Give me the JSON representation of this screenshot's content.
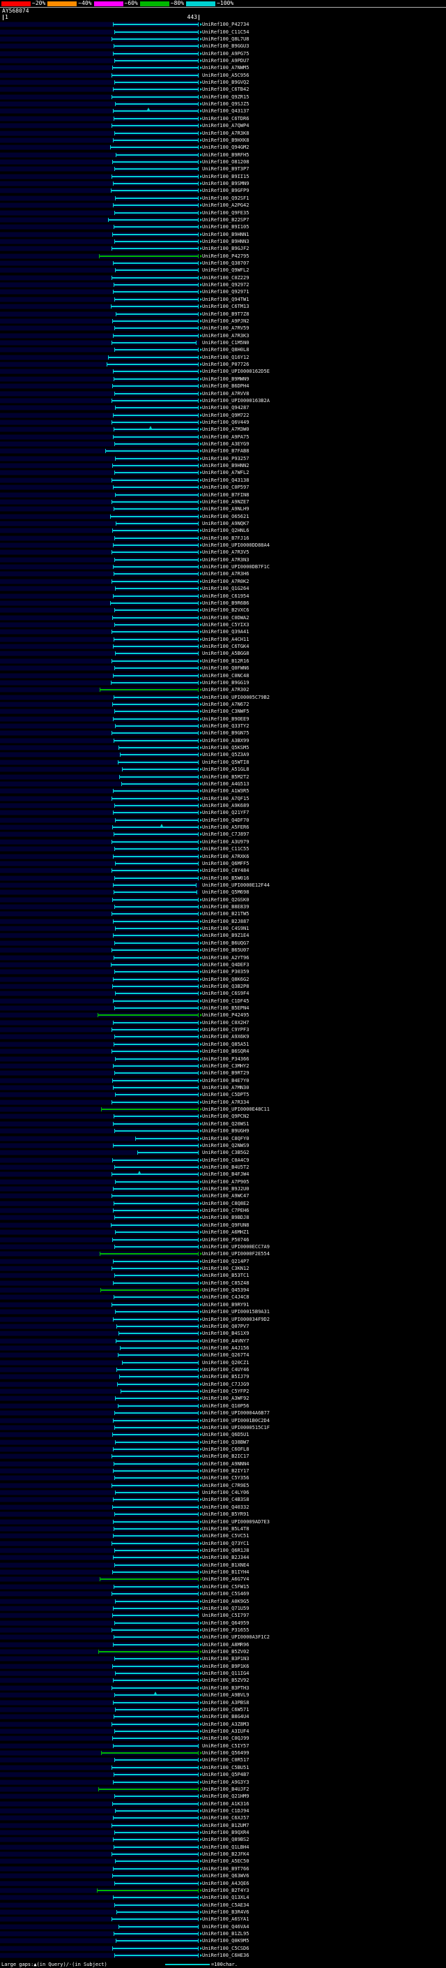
{
  "chart_data": {
    "type": "bar",
    "subtype": "sequence-similarity-hit-overview",
    "title": "AY568074",
    "query": {
      "name": "AY568074",
      "start_label": "1",
      "end_label": "443",
      "length": 443
    },
    "identity_scale": [
      {
        "label": "~20%",
        "color": "#ff0000"
      },
      {
        "label": "~40%",
        "color": "#ff8c00"
      },
      {
        "label": "~60%",
        "color": "#ff00ff"
      },
      {
        "label": "~80%",
        "color": "#00b800"
      },
      {
        "label": "~100%",
        "color": "#00d2d2"
      }
    ],
    "colors": {
      "cyan": "#00d2d2",
      "green": "#00b800",
      "query_band": "#000030"
    },
    "footer": {
      "gaps_label": "Large gaps:▲(in Query)/-(in Subject)",
      "scale_label": "=100char.",
      "scale_line_chars": 100
    },
    "hits": [
      {
        "t": "UniRef100_P42734",
        "s": 249
      },
      {
        "t": "UniRef100_C11C54",
        "s": 252
      },
      {
        "t": "UniRef100_Q8L7U8",
        "s": 247
      },
      {
        "t": "UniRef100_B9GGU3",
        "s": 251
      },
      {
        "t": "UniRef100_A9PG75",
        "s": 249
      },
      {
        "t": "UniRef100_A9PDU7",
        "s": 253
      },
      {
        "t": "UniRef100_A7NWM5",
        "s": 248
      },
      {
        "t": "UniRef100_A5C956",
        "s": 246,
        "a": 0
      },
      {
        "t": "UniRef100_B9GVQ2",
        "s": 252
      },
      {
        "t": "UniRef100_C6TB42",
        "s": 250
      },
      {
        "t": "UniRef100_Q9ZR15",
        "s": 247
      },
      {
        "t": "UniRef100_Q9SJZ5",
        "s": 254
      },
      {
        "t": "UniRef100_Q43137",
        "s": 249,
        "g": [
          330
        ]
      },
      {
        "t": "UniRef100_C6TDR6",
        "s": 251
      },
      {
        "t": "UniRef100_A7QWP4",
        "s": 246
      },
      {
        "t": "UniRef100_A7R3K8",
        "s": 253
      },
      {
        "t": "UniRef100_B9HXK8",
        "s": 250
      },
      {
        "t": "UniRef100_Q94GM2",
        "s": 243
      },
      {
        "t": "UniRef100_B9RFH5",
        "s": 256
      },
      {
        "t": "UniRef100_O81208",
        "s": 248
      },
      {
        "t": "UniRef100_B9T3P7",
        "s": 252,
        "a": 0
      },
      {
        "t": "UniRef100_B9II15",
        "s": 247
      },
      {
        "t": "UniRef100_B9SMN9",
        "s": 250
      },
      {
        "t": "UniRef100_B9GFP9",
        "s": 245
      },
      {
        "t": "UniRef100_Q92SF1",
        "s": 255
      },
      {
        "t": "UniRef100_A2PG42",
        "s": 249
      },
      {
        "t": "UniRef100_Q9FE35",
        "s": 253
      },
      {
        "t": "UniRef100_B22SP7",
        "s": 238
      },
      {
        "t": "UniRef100_B9I105",
        "s": 251
      },
      {
        "t": "UniRef100_B9HNN1",
        "s": 248
      },
      {
        "t": "UniRef100_B9HNN3",
        "s": 252
      },
      {
        "t": "UniRef100_B9GJF2",
        "s": 246
      },
      {
        "t": "UniRef100_P42795",
        "s": 218,
        "c": "g"
      },
      {
        "t": "UniRef100_Q38707",
        "s": 250
      },
      {
        "t": "UniRef100_Q9WFL2",
        "s": 254,
        "a": 0
      },
      {
        "t": "UniRef100_C0Z229",
        "s": 247
      },
      {
        "t": "UniRef100_Q92972",
        "s": 251
      },
      {
        "t": "UniRef100_Q92971",
        "s": 249
      },
      {
        "t": "UniRef100_Q94TW1",
        "s": 253
      },
      {
        "t": "UniRef100_C6TM13",
        "s": 245
      },
      {
        "t": "UniRef100_B9T7Z8",
        "s": 256
      },
      {
        "t": "UniRef100_A9PJN2",
        "s": 248
      },
      {
        "t": "UniRef100_A7RV59",
        "s": 252
      },
      {
        "t": "UniRef100_A7R3K3",
        "s": 250
      },
      {
        "t": "UniRef100_C1M5N0",
        "s": 247,
        "e": 438,
        "a": 0
      },
      {
        "t": "UniRef100_Q8H0L8",
        "s": 253
      },
      {
        "t": "UniRef100_Q16Y12",
        "s": 238
      },
      {
        "t": "UniRef100_P07726",
        "s": 236
      },
      {
        "t": "UniRef100_UPI0000162D5E",
        "s": 249
      },
      {
        "t": "UniRef100_B9MWN9",
        "s": 251
      },
      {
        "t": "UniRef100_B6DPH4",
        "s": 248
      },
      {
        "t": "UniRef100_A7RVV8",
        "s": 252
      },
      {
        "t": "UniRef100_UPI0000163B2A",
        "s": 246
      },
      {
        "t": "UniRef100_Q94287",
        "s": 254
      },
      {
        "t": "UniRef100_Q9M722",
        "s": 250
      },
      {
        "t": "UniRef100_Q6V449",
        "s": 247
      },
      {
        "t": "UniRef100_A7M3W0",
        "s": 251,
        "g": [
          335
        ]
      },
      {
        "t": "UniRef100_A9PA75",
        "s": 249
      },
      {
        "t": "UniRef100_A3EYG9",
        "s": 253
      },
      {
        "t": "UniRef100_B7FAB8",
        "s": 232
      },
      {
        "t": "UniRef100_P93257",
        "s": 255
      },
      {
        "t": "UniRef100_B9HNN2",
        "s": 248
      },
      {
        "t": "UniRef100_A7WFL2",
        "s": 252
      },
      {
        "t": "UniRef100_Q43138",
        "s": 246
      },
      {
        "t": "UniRef100_C0P597",
        "s": 250
      },
      {
        "t": "UniRef100_B7FIN8",
        "s": 254
      },
      {
        "t": "UniRef100_A9NZE7",
        "s": 247
      },
      {
        "t": "UniRef100_A9NLH9",
        "s": 251
      },
      {
        "t": "UniRef100_O65621",
        "s": 243
      },
      {
        "t": "UniRef100_A9NQK7",
        "s": 256,
        "a": 0
      },
      {
        "t": "UniRef100_Q2HNL6",
        "s": 248
      },
      {
        "t": "UniRef100_B7FJ16",
        "s": 252
      },
      {
        "t": "UniRef100_UPI0000DD88A4",
        "s": 250
      },
      {
        "t": "UniRef100_A7R3V5",
        "s": 246
      },
      {
        "t": "UniRef100_A7R3N3",
        "s": 253
      },
      {
        "t": "UniRef100_UPI0000DB7F1C",
        "s": 249
      },
      {
        "t": "UniRef100_A7R3H6",
        "s": 251
      },
      {
        "t": "UniRef100_A7R0K2",
        "s": 247
      },
      {
        "t": "UniRef100_Q1G264",
        "s": 255
      },
      {
        "t": "UniRef100_C61954",
        "s": 250
      },
      {
        "t": "UniRef100_B9R6B6",
        "s": 244
      },
      {
        "t": "UniRef100_B2VXC6",
        "s": 252
      },
      {
        "t": "UniRef100_C0DWA2",
        "s": 248
      },
      {
        "t": "UniRef100_C5YIX3",
        "s": 253
      },
      {
        "t": "UniRef100_Q39A41",
        "s": 246
      },
      {
        "t": "UniRef100_A4CH11",
        "s": 251
      },
      {
        "t": "UniRef100_C6TGK4",
        "s": 249
      },
      {
        "t": "UniRef100_A5BGG8",
        "s": 254,
        "a": 0
      },
      {
        "t": "UniRef100_B12R16",
        "s": 247
      },
      {
        "t": "UniRef100_Q0FWN6",
        "s": 252
      },
      {
        "t": "UniRef100_C0NC48",
        "s": 250
      },
      {
        "t": "UniRef100_B9GG19",
        "s": 245
      },
      {
        "t": "UniRef100_A7R302",
        "s": 220,
        "c": "g"
      },
      {
        "t": "UniRef100_UPI00005C79B2",
        "s": 251
      },
      {
        "t": "UniRef100_A7N672",
        "s": 248
      },
      {
        "t": "UniRef100_C3NWF5",
        "s": 253
      },
      {
        "t": "UniRef100_B9OEE9",
        "s": 249
      },
      {
        "t": "UniRef100_Q33TY2",
        "s": 255
      },
      {
        "t": "UniRef100_B9GN75",
        "s": 246
      },
      {
        "t": "UniRef100_A3BX99",
        "s": 251
      },
      {
        "t": "UniRef100_Q5KSM5",
        "s": 262
      },
      {
        "t": "UniRef100_Q5Z3A9",
        "s": 266
      },
      {
        "t": "UniRef100_Q5WTI8",
        "s": 260,
        "a": 0
      },
      {
        "t": "UniRef100_A51GL8",
        "s": 270
      },
      {
        "t": "UniRef100_B5M2T2",
        "s": 264
      },
      {
        "t": "UniRef100_A4G513",
        "s": 268
      },
      {
        "t": "UniRef100_A1W3R5",
        "s": 250
      },
      {
        "t": "UniRef100_A7QF15",
        "s": 247
      },
      {
        "t": "UniRef100_A9K689",
        "s": 252
      },
      {
        "t": "UniRef100_Q21YF7",
        "s": 249
      },
      {
        "t": "UniRef100_Q4DF70",
        "s": 254
      },
      {
        "t": "UniRef100_A5FER6",
        "s": 248,
        "g": [
          360
        ]
      },
      {
        "t": "UniRef100_C7J897",
        "s": 251
      },
      {
        "t": "UniRef100_A3U979",
        "s": 246
      },
      {
        "t": "UniRef100_C11C55",
        "s": 253
      },
      {
        "t": "UniRef100_A7RXK6",
        "s": 250
      },
      {
        "t": "UniRef100_Q6MFF5",
        "s": 255,
        "a": 0
      },
      {
        "t": "UniRef100_C8Y484",
        "s": 247
      },
      {
        "t": "UniRef100_B5W016",
        "s": 252
      },
      {
        "t": "UniRef100_UPI0000E12F44",
        "s": 249,
        "e": 438,
        "a": 0
      },
      {
        "t": "UniRef100_Q5M698",
        "s": 251,
        "e": 440,
        "a": 0
      },
      {
        "t": "UniRef100_Q2GSK0",
        "s": 248
      },
      {
        "t": "UniRef100_B8E839",
        "s": 253
      },
      {
        "t": "UniRef100_B21TW5",
        "s": 246
      },
      {
        "t": "UniRef100_B2J887",
        "s": 250
      },
      {
        "t": "UniRef100_C4S9N1",
        "s": 254
      },
      {
        "t": "UniRef100_B9Z1E4",
        "s": 249
      },
      {
        "t": "UniRef100_B6UQG7",
        "s": 252
      },
      {
        "t": "UniRef100_B65U07",
        "s": 247
      },
      {
        "t": "UniRef100_A2YT96",
        "s": 251
      },
      {
        "t": "UniRef100_Q4DEF3",
        "s": 245
      },
      {
        "t": "UniRef100_P30359",
        "s": 253
      },
      {
        "t": "UniRef100_Q8K6G2",
        "s": 250
      },
      {
        "t": "UniRef100_Q3B2P8",
        "s": 248
      },
      {
        "t": "UniRef100_C6S9F4",
        "s": 255
      },
      {
        "t": "UniRef100_C1DF45",
        "s": 249
      },
      {
        "t": "UniRef100_B5EPN4",
        "s": 252
      },
      {
        "t": "UniRef100_P42495",
        "s": 215,
        "c": "g"
      },
      {
        "t": "UniRef100_C0X2H7",
        "s": 250
      },
      {
        "t": "UniRef100_C9YPF3",
        "s": 247
      },
      {
        "t": "UniRef100_A9X6K9",
        "s": 253
      },
      {
        "t": "UniRef100_Q85A51",
        "s": 251
      },
      {
        "t": "UniRef100_B6SQR4",
        "s": 246
      },
      {
        "t": "UniRef100_P34366",
        "s": 254
      },
      {
        "t": "UniRef100_C3MHY2",
        "s": 249
      },
      {
        "t": "UniRef100_B9RT29",
        "s": 252
      },
      {
        "t": "UniRef100_B4E7Y0",
        "s": 248
      },
      {
        "t": "UniRef100_A7MN30",
        "s": 250,
        "a": 0
      },
      {
        "t": "UniRef100_C5DPT5",
        "s": 255
      },
      {
        "t": "UniRef100_A7R334",
        "s": 247
      },
      {
        "t": "UniRef100_UPI0000E48C11",
        "s": 222,
        "c": "g"
      },
      {
        "t": "UniRef100_Q9PCN2",
        "s": 251
      },
      {
        "t": "UniRef100_Q20WS1",
        "s": 249
      },
      {
        "t": "UniRef100_B9UGH9",
        "s": 253
      },
      {
        "t": "UniRef100_C8QFY0",
        "s": 300
      },
      {
        "t": "UniRef100_Q2NWS9",
        "s": 250
      },
      {
        "t": "UniRef100_C3B5G2",
        "s": 305,
        "a": 0
      },
      {
        "t": "UniRef100_C0A4C9",
        "s": 248
      },
      {
        "t": "UniRef100_B4U5T2",
        "s": 252
      },
      {
        "t": "UniRef100_B4FJW4",
        "s": 246,
        "g": [
          310
        ]
      },
      {
        "t": "UniRef100_A7P905",
        "s": 254
      },
      {
        "t": "UniRef100_B9J2U0",
        "s": 250
      },
      {
        "t": "UniRef100_A9WC47",
        "s": 247
      },
      {
        "t": "UniRef100_C8Q8E2",
        "s": 251
      },
      {
        "t": "UniRef100_C7PEH6",
        "s": 249
      },
      {
        "t": "UniRef100_B9BDJ8",
        "s": 253
      },
      {
        "t": "UniRef100_Q9FUN8",
        "s": 245
      },
      {
        "t": "UniRef100_A6MHZ1",
        "s": 255
      },
      {
        "t": "UniRef100_P50746",
        "s": 248
      },
      {
        "t": "UniRef100_UPI0000ECC7A9",
        "s": 252
      },
      {
        "t": "UniRef100_UPI0000F2E554",
        "s": 219,
        "c": "g"
      },
      {
        "t": "UniRef100_Q214P7",
        "s": 250
      },
      {
        "t": "UniRef100_C3KN12",
        "s": 247
      },
      {
        "t": "UniRef100_B53TC1",
        "s": 253
      },
      {
        "t": "UniRef100_C85Z48",
        "s": 249
      },
      {
        "t": "UniRef100_Q45394",
        "s": 221,
        "c": "g"
      },
      {
        "t": "UniRef100_C4J4C8",
        "s": 251
      },
      {
        "t": "UniRef100_B9RY91",
        "s": 246
      },
      {
        "t": "UniRef100_UPI00015B9A31",
        "s": 254
      },
      {
        "t": "UniRef100_UPI000034F9D2",
        "s": 250
      },
      {
        "t": "UniRef100_Q07PV7",
        "s": 258
      },
      {
        "t": "UniRef100_B4S1X9",
        "s": 262
      },
      {
        "t": "UniRef100_A4VNY7",
        "s": 256
      },
      {
        "t": "UniRef100_A4J156",
        "s": 266
      },
      {
        "t": "UniRef100_Q267T4",
        "s": 260
      },
      {
        "t": "UniRef100_Q20CZ1",
        "s": 270,
        "a": 0
      },
      {
        "t": "UniRef100_C4UY46",
        "s": 257
      },
      {
        "t": "UniRef100_B5IJ79",
        "s": 263
      },
      {
        "t": "UniRef100_C7JJG9",
        "s": 259
      },
      {
        "t": "UniRef100_C5YFP2",
        "s": 267
      },
      {
        "t": "UniRef100_A3WF92",
        "s": 255
      },
      {
        "t": "UniRef100_Q10P56",
        "s": 261
      },
      {
        "t": "UniRef100_UPI00004A6B77",
        "s": 253
      },
      {
        "t": "UniRef100_UPI0001B0C2D4",
        "s": 249
      },
      {
        "t": "UniRef100_UPI0000515C1F",
        "s": 252
      },
      {
        "t": "UniRef100_Q6D5U1",
        "s": 248
      },
      {
        "t": "UniRef100_Q38BW7",
        "s": 254
      },
      {
        "t": "UniRef100_C6OFL8",
        "s": 250
      },
      {
        "t": "UniRef100_B2IC17",
        "s": 247
      },
      {
        "t": "UniRef100_A9NNN4",
        "s": 251
      },
      {
        "t": "UniRef100_B2IY17",
        "s": 249
      },
      {
        "t": "UniRef100_C5Y356",
        "s": 253
      },
      {
        "t": "UniRef100_C7R9E5",
        "s": 246
      },
      {
        "t": "UniRef100_C4LY06",
        "s": 255,
        "a": 0
      },
      {
        "t": "UniRef100_C4B3S8",
        "s": 250
      },
      {
        "t": "UniRef100_Q40332",
        "s": 248
      },
      {
        "t": "UniRef100_B5YR91",
        "s": 252
      },
      {
        "t": "UniRef100_UPI00009AD7E3",
        "s": 249
      },
      {
        "t": "UniRef100_B5L4T8",
        "s": 251
      },
      {
        "t": "UniRef100_C5VC51",
        "s": 250
      },
      {
        "t": "UniRef100_Q73YC1",
        "s": 247
      },
      {
        "t": "UniRef100_Q6R1J8",
        "s": 253
      },
      {
        "t": "UniRef100_B2J344",
        "s": 249
      },
      {
        "t": "UniRef100_B1XNE4",
        "s": 252
      },
      {
        "t": "UniRef100_B1IYH4",
        "s": 248
      },
      {
        "t": "UniRef100_A6G7V4",
        "s": 220,
        "c": "g"
      },
      {
        "t": "UniRef100_C5FW15",
        "s": 251
      },
      {
        "t": "UniRef100_C5S469",
        "s": 246
      },
      {
        "t": "UniRef100_A0K9G5",
        "s": 254
      },
      {
        "t": "UniRef100_Q71U59",
        "s": 250
      },
      {
        "t": "UniRef100_C5I797",
        "s": 248,
        "a": 0
      },
      {
        "t": "UniRef100_Q64959",
        "s": 253
      },
      {
        "t": "UniRef100_P31655",
        "s": 247
      },
      {
        "t": "UniRef100_UPI0000A3F1C2",
        "s": 251
      },
      {
        "t": "UniRef100_A8MR96",
        "s": 249
      },
      {
        "t": "UniRef100_B5ZV02",
        "s": 217,
        "c": "g"
      },
      {
        "t": "UniRef100_B3P1N3",
        "s": 252
      },
      {
        "t": "UniRef100_B9P1K6",
        "s": 248
      },
      {
        "t": "UniRef100_Q11IG4",
        "s": 254
      },
      {
        "t": "UniRef100_B5ZV92",
        "s": 250
      },
      {
        "t": "UniRef100_B3PTH3",
        "s": 246
      },
      {
        "t": "UniRef100_A9BVL9",
        "s": 253,
        "g": [
          345
        ]
      },
      {
        "t": "UniRef100_A3PBS8",
        "s": 249
      },
      {
        "t": "UniRef100_C6W571",
        "s": 255
      },
      {
        "t": "UniRef100_B8G4U4",
        "s": 251
      },
      {
        "t": "UniRef100_A3Z8M3",
        "s": 247
      },
      {
        "t": "UniRef100_A3IUF4",
        "s": 252
      },
      {
        "t": "UniRef100_C0QJ99",
        "s": 248
      },
      {
        "t": "UniRef100_C5IY57",
        "s": 250,
        "a": 0
      },
      {
        "t": "UniRef100_Q56499",
        "s": 222,
        "c": "g"
      },
      {
        "t": "UniRef100_C0R517",
        "s": 253
      },
      {
        "t": "UniRef100_C5BU51",
        "s": 247
      },
      {
        "t": "UniRef100_Q5P4B7",
        "s": 251
      },
      {
        "t": "UniRef100_A9G3Y3",
        "s": 249
      },
      {
        "t": "UniRef100_B4UJF2",
        "s": 216,
        "c": "g"
      },
      {
        "t": "UniRef100_Q21HM9",
        "s": 252
      },
      {
        "t": "UniRef100_A1K316",
        "s": 248
      },
      {
        "t": "UniRef100_C1DJ94",
        "s": 254
      },
      {
        "t": "UniRef100_C6XJ57",
        "s": 250
      },
      {
        "t": "UniRef100_B1ZUM7",
        "s": 246
      },
      {
        "t": "UniRef100_B9QXR4",
        "s": 253
      },
      {
        "t": "UniRef100_Q89BS2",
        "s": 249
      },
      {
        "t": "UniRef100_Q1LBH4",
        "s": 251
      },
      {
        "t": "UniRef100_B2JFK4",
        "s": 247
      },
      {
        "t": "UniRef100_A5EC50",
        "s": 255
      },
      {
        "t": "UniRef100_B9T766",
        "s": 250
      },
      {
        "t": "UniRef100_Q63WV6",
        "s": 248
      },
      {
        "t": "UniRef100_A4JQE6",
        "s": 252
      },
      {
        "t": "UniRef100_B2T4Y3",
        "s": 214,
        "c": "g"
      },
      {
        "t": "UniRef100_Q13XL4",
        "s": 249
      },
      {
        "t": "UniRef100_C5AE34",
        "s": 253
      },
      {
        "t": "UniRef100_B3R4V6",
        "s": 258
      },
      {
        "t": "UniRef100_A6SYA1",
        "s": 247
      },
      {
        "t": "UniRef100_Q46VA4",
        "s": 262,
        "a": 0
      },
      {
        "t": "UniRef100_B1ZL95",
        "s": 251
      },
      {
        "t": "UniRef100_Q0K9M5",
        "s": 256
      },
      {
        "t": "UniRef100_C5CSD6",
        "s": 248
      },
      {
        "t": "UniRef100_C6HE36",
        "s": 253
      }
    ]
  }
}
